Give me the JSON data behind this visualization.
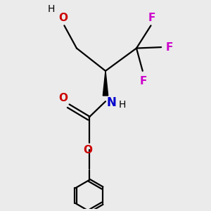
{
  "bg_color": "#ebebeb",
  "bond_color": "#000000",
  "O_color": "#cc0000",
  "N_color": "#0000cc",
  "F_color": "#cc00cc",
  "line_width": 1.6,
  "figsize": [
    3.0,
    3.0
  ],
  "dpi": 100,
  "xlim": [
    0,
    10
  ],
  "ylim": [
    0,
    10
  ]
}
